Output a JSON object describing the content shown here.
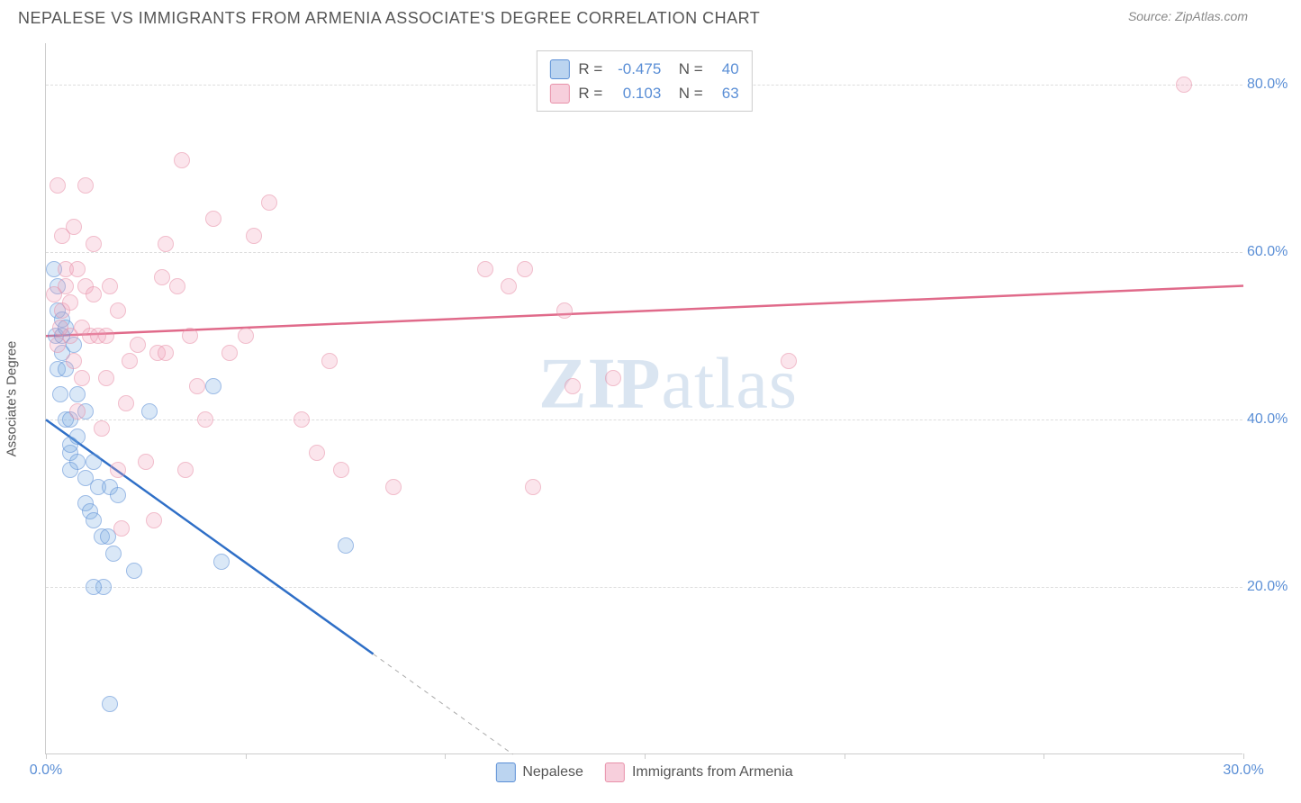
{
  "header": {
    "title": "NEPALESE VS IMMIGRANTS FROM ARMENIA ASSOCIATE'S DEGREE CORRELATION CHART",
    "source": "Source: ZipAtlas.com"
  },
  "chart": {
    "type": "scatter",
    "y_axis_title": "Associate's Degree",
    "xlim": [
      0,
      30
    ],
    "ylim": [
      0,
      85
    ],
    "x_ticks": [
      0,
      5,
      10,
      15,
      20,
      25,
      30
    ],
    "x_tick_labels": {
      "0": "0.0%",
      "30": "30.0%"
    },
    "y_ticks": [
      20,
      40,
      60,
      80
    ],
    "y_tick_labels": [
      "20.0%",
      "40.0%",
      "60.0%",
      "80.0%"
    ],
    "grid_color": "#dddddd",
    "background_color": "#ffffff",
    "axis_color": "#cccccc",
    "label_color": "#5b8fd6",
    "title_color": "#555555",
    "watermark": "ZIPatlas",
    "series": [
      {
        "name": "Nepalese",
        "color_fill": "rgba(120,170,225,0.45)",
        "color_stroke": "#5b8fd6",
        "marker": "circle",
        "marker_size": 18,
        "R": "-0.475",
        "N": "40",
        "trend": {
          "x1": 0,
          "y1": 40,
          "x2": 8.2,
          "y2": 12,
          "extrap_x2": 11.7,
          "extrap_y2": 0,
          "color": "#2f6fc7",
          "width": 2.5
        },
        "points": [
          [
            0.2,
            58
          ],
          [
            0.3,
            53
          ],
          [
            0.3,
            56
          ],
          [
            0.25,
            50
          ],
          [
            0.4,
            50
          ],
          [
            0.4,
            48
          ],
          [
            0.3,
            46
          ],
          [
            0.5,
            46
          ],
          [
            0.35,
            43
          ],
          [
            0.5,
            40
          ],
          [
            0.6,
            40
          ],
          [
            1.0,
            41
          ],
          [
            0.8,
            43
          ],
          [
            0.6,
            36
          ],
          [
            0.6,
            37
          ],
          [
            0.8,
            35
          ],
          [
            1.0,
            33
          ],
          [
            1.2,
            35
          ],
          [
            1.0,
            30
          ],
          [
            1.1,
            29
          ],
          [
            1.2,
            28
          ],
          [
            1.4,
            26
          ],
          [
            1.55,
            26
          ],
          [
            1.7,
            24
          ],
          [
            1.45,
            20
          ],
          [
            1.2,
            20
          ],
          [
            1.3,
            32
          ],
          [
            1.6,
            32
          ],
          [
            1.8,
            31
          ],
          [
            4.2,
            44
          ],
          [
            2.2,
            22
          ],
          [
            4.4,
            23
          ],
          [
            7.5,
            25
          ],
          [
            2.6,
            41
          ],
          [
            1.6,
            6
          ],
          [
            0.4,
            52
          ],
          [
            0.5,
            51
          ],
          [
            0.8,
            38
          ],
          [
            0.6,
            34
          ],
          [
            0.7,
            49
          ]
        ]
      },
      {
        "name": "Immigrants from Armenia",
        "color_fill": "rgba(240,160,185,0.45)",
        "color_stroke": "#e891a9",
        "marker": "circle",
        "marker_size": 18,
        "R": "0.103",
        "N": "63",
        "trend": {
          "x1": 0,
          "y1": 50,
          "x2": 30,
          "y2": 56,
          "color": "#e06a8a",
          "width": 2.5
        },
        "points": [
          [
            0.3,
            68
          ],
          [
            0.4,
            62
          ],
          [
            0.7,
            63
          ],
          [
            0.5,
            58
          ],
          [
            0.8,
            58
          ],
          [
            1.0,
            56
          ],
          [
            0.5,
            56
          ],
          [
            1.2,
            55
          ],
          [
            0.9,
            51
          ],
          [
            1.1,
            50
          ],
          [
            0.6,
            50
          ],
          [
            1.3,
            50
          ],
          [
            0.7,
            47
          ],
          [
            1.5,
            50
          ],
          [
            1.8,
            53
          ],
          [
            2.1,
            47
          ],
          [
            2.3,
            49
          ],
          [
            2.8,
            48
          ],
          [
            2.9,
            57
          ],
          [
            3.0,
            61
          ],
          [
            3.3,
            56
          ],
          [
            3.4,
            71
          ],
          [
            3.6,
            50
          ],
          [
            3.8,
            44
          ],
          [
            4.0,
            40
          ],
          [
            4.2,
            64
          ],
          [
            4.6,
            48
          ],
          [
            5.0,
            50
          ],
          [
            5.2,
            62
          ],
          [
            5.6,
            66
          ],
          [
            6.4,
            40
          ],
          [
            6.8,
            36
          ],
          [
            7.1,
            47
          ],
          [
            7.4,
            34
          ],
          [
            8.7,
            32
          ],
          [
            11.0,
            58
          ],
          [
            11.6,
            56
          ],
          [
            12.0,
            58
          ],
          [
            12.2,
            32
          ],
          [
            13.0,
            53
          ],
          [
            13.2,
            44
          ],
          [
            14.2,
            45
          ],
          [
            18.6,
            47
          ],
          [
            28.5,
            80
          ],
          [
            2.5,
            35
          ],
          [
            1.8,
            34
          ],
          [
            2.7,
            28
          ],
          [
            3.5,
            34
          ],
          [
            1.0,
            68
          ],
          [
            1.2,
            61
          ],
          [
            1.6,
            56
          ],
          [
            0.4,
            53
          ],
          [
            0.2,
            55
          ],
          [
            0.3,
            49
          ],
          [
            0.35,
            51
          ],
          [
            0.6,
            54
          ],
          [
            1.5,
            45
          ],
          [
            2.0,
            42
          ],
          [
            3.0,
            48
          ],
          [
            0.9,
            45
          ],
          [
            0.8,
            41
          ],
          [
            1.4,
            39
          ],
          [
            1.9,
            27
          ]
        ]
      }
    ],
    "legend": {
      "items": [
        "Nepalese",
        "Immigrants from Armenia"
      ]
    }
  }
}
